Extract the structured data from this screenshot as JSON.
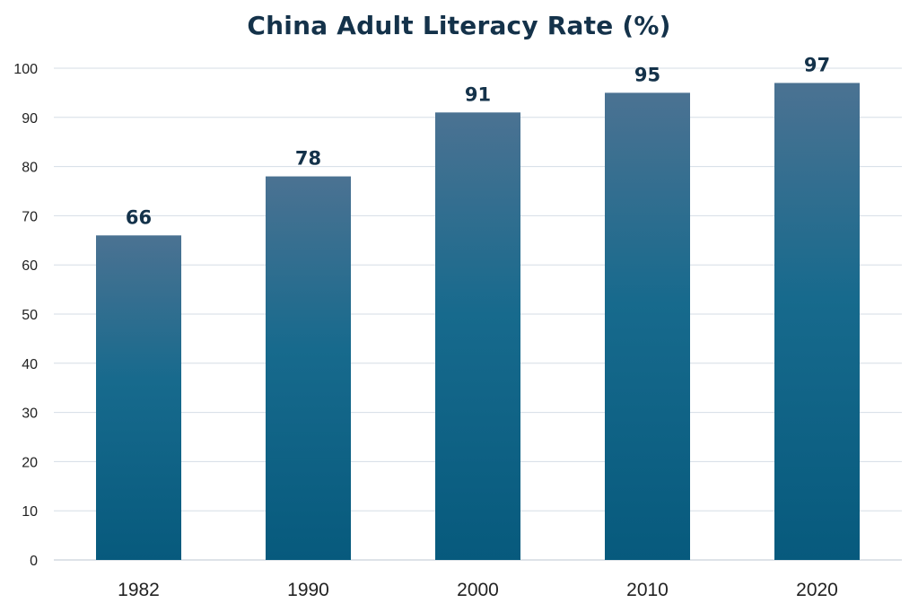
{
  "chart_data": {
    "type": "bar",
    "title": "China Adult Literacy Rate (%)",
    "xlabel": "",
    "ylabel": "",
    "categories": [
      "1982",
      "1990",
      "2000",
      "2010",
      "2020"
    ],
    "values": [
      66,
      78,
      91,
      95,
      97
    ],
    "data_labels": [
      "66",
      "78",
      "91",
      "95",
      "97"
    ],
    "ylim": [
      0,
      100
    ],
    "yticks": [
      0,
      10,
      20,
      30,
      40,
      50,
      60,
      70,
      80,
      90,
      100
    ],
    "grid": true,
    "legend": "none",
    "colors": {
      "bar_top": "#4b7292",
      "bar_bottom": "#075a7d",
      "title": "#14324a",
      "data_label": "#14324a",
      "grid": "#d5dde6"
    }
  }
}
